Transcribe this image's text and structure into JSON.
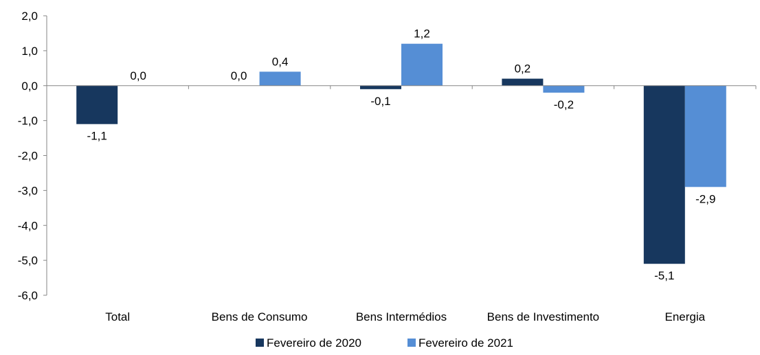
{
  "chart_data": {
    "type": "bar",
    "categories": [
      "Total",
      "Bens de Consumo",
      "Bens Intermédios",
      "Bens de Investimento",
      "Energia"
    ],
    "series": [
      {
        "name": "Fevereiro de 2020",
        "values": [
          -1.1,
          0.0,
          -0.1,
          0.2,
          -5.1
        ],
        "labels": [
          "-1,1",
          "0,0",
          "-0,1",
          "0,2",
          "-5,1"
        ]
      },
      {
        "name": "Fevereiro de 2021",
        "values": [
          0.0,
          0.4,
          1.2,
          -0.2,
          -2.9
        ],
        "labels": [
          "0,0",
          "0,4",
          "1,2",
          "-0,2",
          "-2,9"
        ]
      }
    ],
    "ylim": [
      -6,
      2
    ],
    "yticks": [
      2,
      1,
      0,
      -1,
      -2,
      -3,
      -4,
      -5,
      -6
    ],
    "ytick_labels": [
      "2,0",
      "1,0",
      "0,0",
      "-1,0",
      "-2,0",
      "-3,0",
      "-4,0",
      "-5,0",
      "-6,0"
    ],
    "legend_position": "bottom",
    "grid": false
  },
  "colors": {
    "series": [
      "#17375E",
      "#558ED5"
    ],
    "axis": "#868686"
  }
}
